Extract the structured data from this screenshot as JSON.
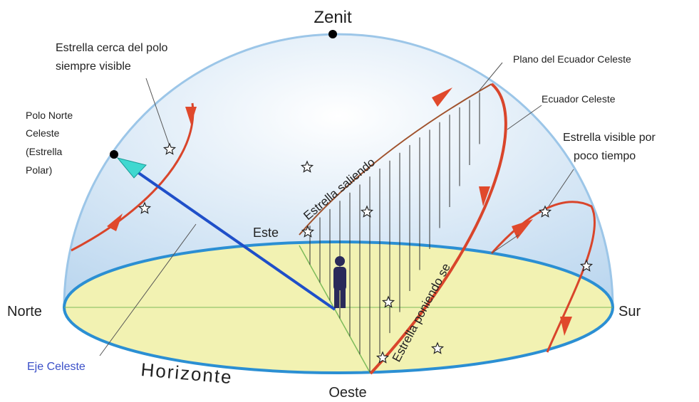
{
  "labels": {
    "zenit": "Zenit",
    "estrella_cerca_polo": [
      "Estrella cerca del polo",
      "siempre visible"
    ],
    "polo_norte": [
      "Polo Norte",
      "Celeste",
      "(Estrella",
      "Polar)"
    ],
    "plano_ecuador": "Plano del Ecuador Celeste",
    "ecuador": "Ecuador Celeste",
    "estrella_visible": [
      "Estrella visible por",
      "poco tiempo"
    ],
    "saliendo": "Estrella saliendo",
    "poniendo": "Estrella poniendo se",
    "este": "Este",
    "norte": "Norte",
    "sur": "Sur",
    "oeste": "Oeste",
    "horizonte": "Horizonte",
    "eje": "Eje Celeste"
  }
}
